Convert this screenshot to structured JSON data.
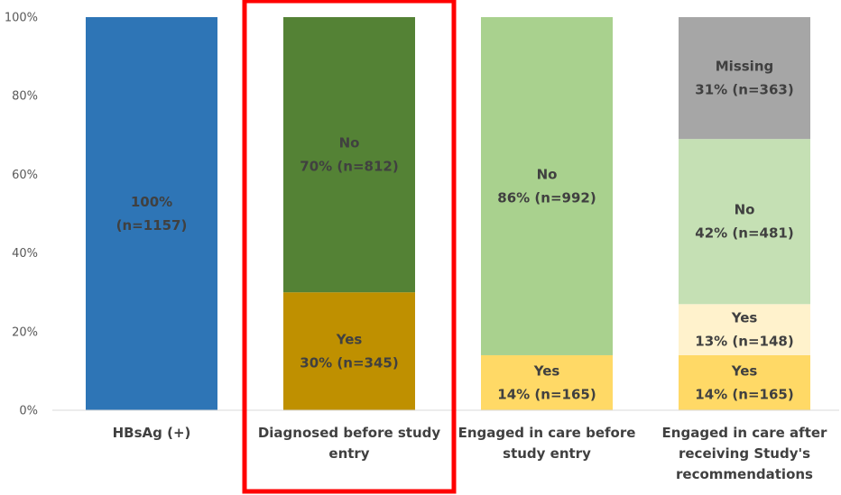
{
  "colors": {
    "hbsag": "#2E75B6",
    "diagnosed_no": "#548235",
    "diagnosed_yes": "#BF9000",
    "care_no": "#A9D18E",
    "care_yes": "#FFD966",
    "after_missing": "#A6A6A6",
    "after_no": "#C5E0B4",
    "after_yes_light": "#FFF2CC",
    "after_yes": "#FFD966",
    "label_text": "#404040",
    "axis_text": "#595959",
    "axis_line": "#D9D9D9",
    "highlight_box": "#FF0000"
  },
  "chart_data": {
    "type": "bar",
    "stacked": true,
    "percent_stacked": true,
    "title": "",
    "xlabel": "",
    "ylabel": "",
    "ylim": [
      0,
      100
    ],
    "y_ticks": [
      "0%",
      "20%",
      "40%",
      "60%",
      "80%",
      "100%"
    ],
    "grid": false,
    "highlighted_category_index": 1,
    "categories": [
      [
        "HBsAg (+)"
      ],
      [
        "Diagnosed before study",
        "entry"
      ],
      [
        "Engaged in care before",
        "study entry"
      ],
      [
        "Engaged in care after",
        "receiving Study's",
        "recommendations"
      ]
    ],
    "bars": [
      {
        "segments": [
          {
            "value": 100,
            "n": 1157,
            "color_key": "hbsag",
            "label_lines": [
              "100%",
              "(n=1157)"
            ]
          }
        ]
      },
      {
        "segments": [
          {
            "value": 30,
            "n": 345,
            "color_key": "diagnosed_yes",
            "label_lines": [
              "Yes",
              "30% (n=345)"
            ]
          },
          {
            "value": 70,
            "n": 812,
            "color_key": "diagnosed_no",
            "label_lines": [
              "No",
              "70% (n=812)"
            ]
          }
        ]
      },
      {
        "segments": [
          {
            "value": 14,
            "n": 165,
            "color_key": "care_yes",
            "label_lines": [
              "Yes",
              "14% (n=165)"
            ]
          },
          {
            "value": 86,
            "n": 992,
            "color_key": "care_no",
            "label_lines": [
              "No",
              "86% (n=992)"
            ]
          }
        ]
      },
      {
        "segments": [
          {
            "value": 14,
            "n": 165,
            "color_key": "after_yes",
            "label_lines": [
              "Yes",
              "14% (n=165)"
            ]
          },
          {
            "value": 13,
            "n": 148,
            "color_key": "after_yes_light",
            "label_lines": [
              "Yes",
              "13% (n=148)"
            ]
          },
          {
            "value": 42,
            "n": 481,
            "color_key": "after_no",
            "label_lines": [
              "No",
              "42% (n=481)"
            ]
          },
          {
            "value": 31,
            "n": 363,
            "color_key": "after_missing",
            "label_lines": [
              "Missing",
              "31% (n=363)"
            ]
          }
        ]
      }
    ]
  }
}
